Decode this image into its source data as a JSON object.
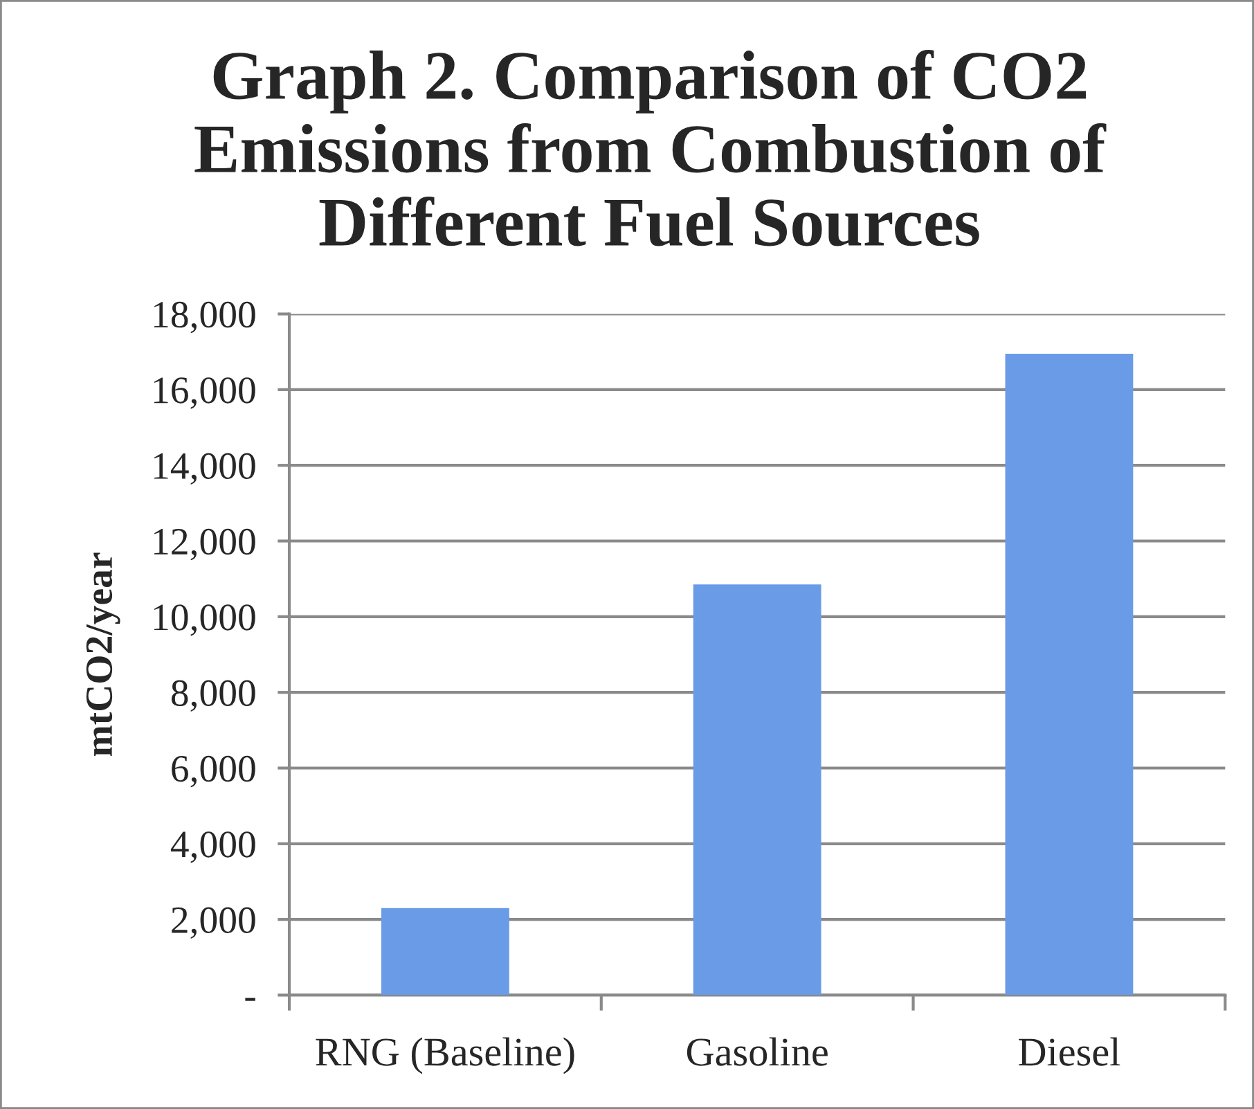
{
  "chart_data": {
    "type": "bar",
    "title": "Graph 2. Comparison of CO2\nEmissions from Combustion of\nDifferent Fuel Sources",
    "ylabel": "mtCO2/year",
    "categories": [
      "RNG (Baseline)",
      "Gasoline",
      "Diesel"
    ],
    "values": [
      2300,
      10850,
      16950
    ],
    "color": "#6a9be6",
    "ylim": [
      0,
      18000
    ],
    "yticks": [
      {
        "value": 0,
        "label": "-"
      },
      {
        "value": 2000,
        "label": "2,000"
      },
      {
        "value": 4000,
        "label": "4,000"
      },
      {
        "value": 6000,
        "label": "6,000"
      },
      {
        "value": 8000,
        "label": "8,000"
      },
      {
        "value": 10000,
        "label": "10,000"
      },
      {
        "value": 12000,
        "label": "12,000"
      },
      {
        "value": 14000,
        "label": "14,000"
      },
      {
        "value": 16000,
        "label": "16,000"
      },
      {
        "value": 18000,
        "label": "18,000"
      }
    ],
    "grid": "y"
  }
}
